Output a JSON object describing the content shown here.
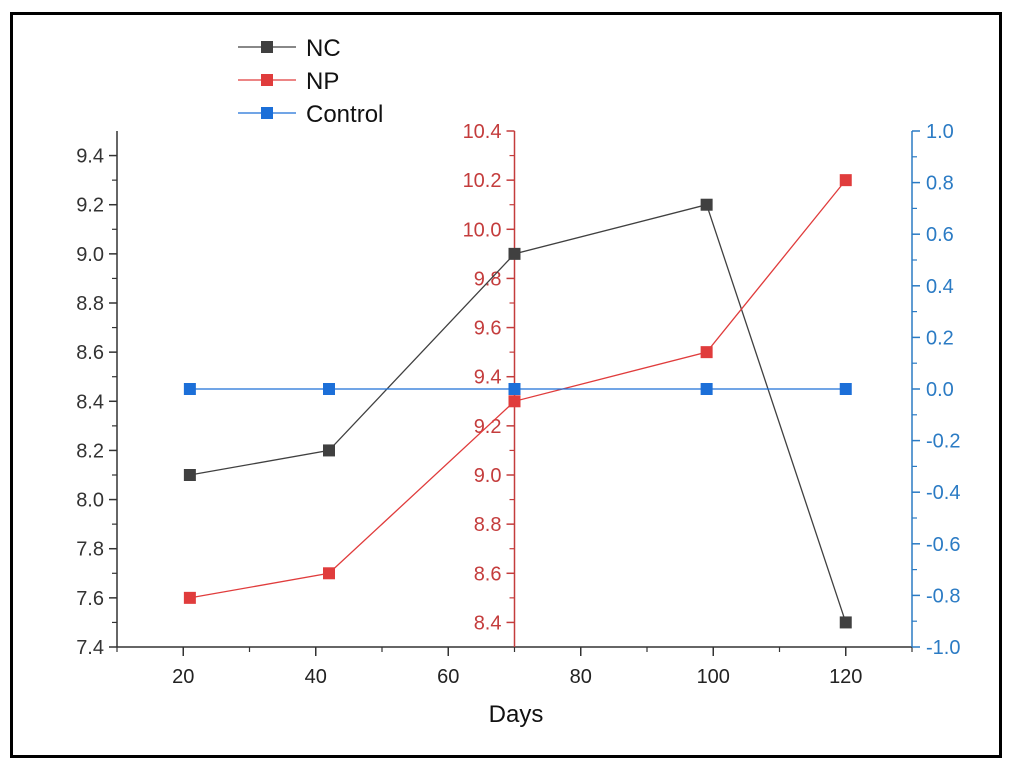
{
  "chart_data": {
    "type": "line",
    "title": "",
    "xlabel": "Days",
    "x": [
      21,
      42,
      70,
      99,
      120
    ],
    "xlim": [
      10,
      130
    ],
    "xticks": [
      20,
      40,
      60,
      80,
      100,
      120
    ],
    "grid": false,
    "legend": "top-left",
    "series": [
      {
        "name": "NC",
        "axis": "left",
        "color": "#404040",
        "marker": "square",
        "y": [
          8.1,
          8.2,
          9.0,
          9.2,
          7.5
        ]
      },
      {
        "name": "NP",
        "axis": "middle",
        "color": "#e03c3c",
        "marker": "square",
        "y": [
          8.5,
          8.6,
          9.3,
          9.5,
          10.2
        ]
      },
      {
        "name": "Control",
        "axis": "right",
        "color": "#1c6fd8",
        "marker": "square",
        "y": [
          0.0,
          0.0,
          0.0,
          0.0,
          0.0
        ]
      }
    ],
    "axes": {
      "left": {
        "color": "#333333",
        "ylim": [
          7.4,
          9.5
        ],
        "ticks": [
          "7.4",
          "7.6",
          "7.8",
          "8.0",
          "8.2",
          "8.4",
          "8.6",
          "8.8",
          "9.0",
          "9.2",
          "9.4"
        ]
      },
      "middle": {
        "color": "#c43c3c",
        "at_x": 70,
        "ylim": [
          8.3,
          10.4
        ],
        "ticks": [
          "8.4",
          "8.6",
          "8.8",
          "9.0",
          "9.2",
          "9.4",
          "9.6",
          "9.8",
          "10.0",
          "10.2",
          "10.4"
        ]
      },
      "right": {
        "color": "#2b7bc4",
        "ylim": [
          -1.0,
          1.0
        ],
        "ticks": [
          "-1.0",
          "-0.8",
          "-0.6",
          "-0.4",
          "-0.2",
          "0.0",
          "0.2",
          "0.4",
          "0.6",
          "0.8",
          "1.0"
        ]
      }
    }
  }
}
